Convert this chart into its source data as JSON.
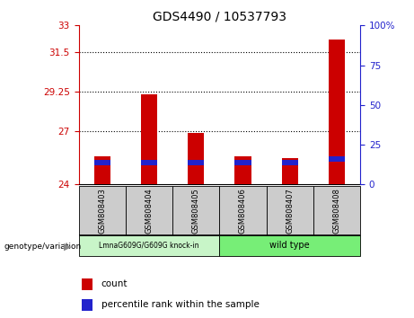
{
  "title": "GDS4490 / 10537793",
  "samples": [
    "GSM808403",
    "GSM808404",
    "GSM808405",
    "GSM808406",
    "GSM808407",
    "GSM808408"
  ],
  "group_names": [
    "LmnaG609G/G609G knock-in",
    "wild type"
  ],
  "group_splits": [
    3,
    3
  ],
  "bar_bottom": 24,
  "ylim_left": [
    24,
    33
  ],
  "ylim_right": [
    0,
    100
  ],
  "yticks_left": [
    24,
    27,
    29.25,
    31.5,
    33
  ],
  "yticks_right": [
    0,
    25,
    50,
    75,
    100
  ],
  "red_bar_tops": [
    25.6,
    29.1,
    26.9,
    25.6,
    25.5,
    32.2
  ],
  "blue_bar_center": [
    25.25,
    25.25,
    25.25,
    25.25,
    25.25,
    25.45
  ],
  "blue_bar_height": 0.3,
  "red_color": "#cc0000",
  "blue_color": "#2222cc",
  "sample_box_color": "#cccccc",
  "group1_color": "#c8f5c8",
  "group2_color": "#77ee77",
  "left_tick_color": "#cc0000",
  "right_tick_color": "#2222cc",
  "bar_width": 0.35,
  "grid_yticks": [
    31.5,
    29.25,
    27
  ],
  "ytick_labels_left": [
    "24",
    "27",
    "29.25",
    "31.5",
    "33"
  ],
  "ytick_labels_right": [
    "0",
    "25",
    "50",
    "75",
    "100%"
  ]
}
